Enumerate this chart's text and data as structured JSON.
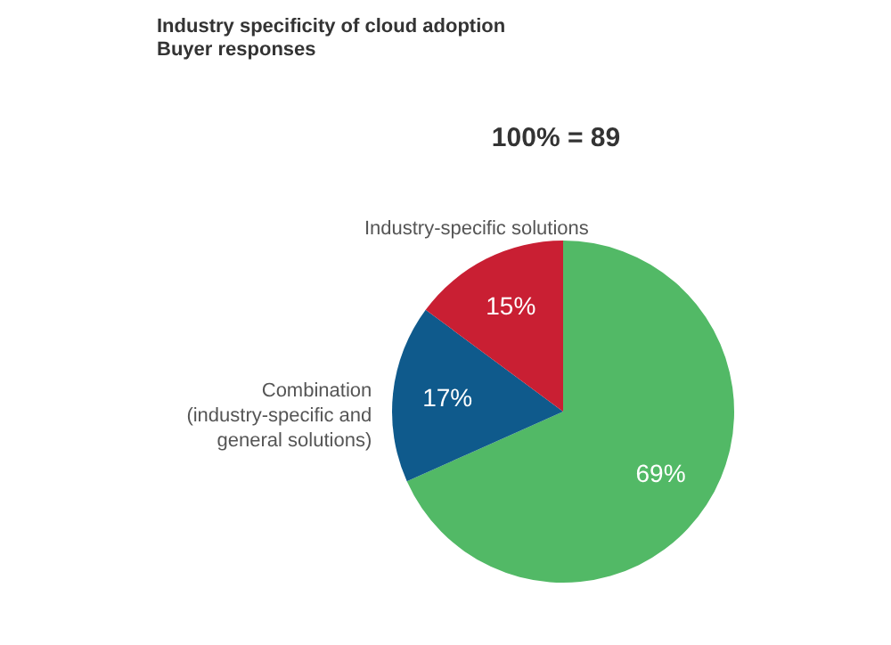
{
  "chart_data": {
    "type": "pie",
    "title": "Industry specificity of cloud adoption",
    "subtitle": "Buyer responses",
    "annotations": [
      "100% = 89"
    ],
    "categories": [
      null,
      "Combination (industry-specific and general solutions)",
      "Industry-specific  solutions"
    ],
    "values": [
      69,
      17,
      15
    ],
    "colors": [
      "#52b966",
      "#0f5a8c",
      "#c91f33"
    ],
    "value_labels": [
      "69%",
      "17%",
      "15%"
    ],
    "legend": false
  }
}
